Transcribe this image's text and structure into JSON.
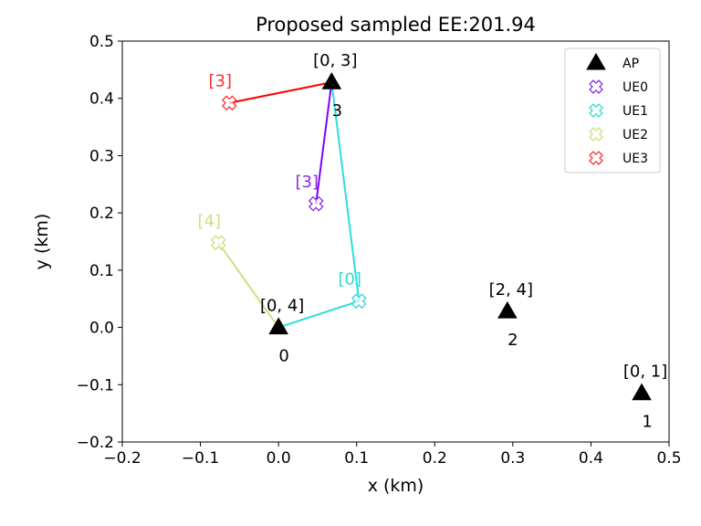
{
  "chart_data": {
    "type": "scatter",
    "title": "Proposed sampled EE:201.94",
    "xlabel": "x (km)",
    "ylabel": "y (km)",
    "xlim": [
      -0.2,
      0.5
    ],
    "ylim": [
      -0.2,
      0.5
    ],
    "xticks": [
      "−0.2",
      "−0.1",
      "0.0",
      "0.1",
      "0.2",
      "0.3",
      "0.4",
      "0.5"
    ],
    "yticks": [
      "−0.2",
      "−0.1",
      "0.0",
      "0.1",
      "0.2",
      "0.3",
      "0.4",
      "0.5"
    ],
    "grid": false,
    "legend_position": "top-right",
    "aps": [
      {
        "id": "0",
        "x": 0.0,
        "y": 0.0,
        "label": "[0, 4]"
      },
      {
        "id": "1",
        "x": 0.465,
        "y": -0.115,
        "label": "[0, 1]"
      },
      {
        "id": "2",
        "x": 0.293,
        "y": 0.028,
        "label": "[2, 4]"
      },
      {
        "id": "3",
        "x": 0.068,
        "y": 0.428,
        "label": "[0, 3]"
      }
    ],
    "ues": [
      {
        "name": "UE0",
        "x": 0.048,
        "y": 0.216,
        "label": "[3]",
        "color": "#8a2be2",
        "line_color": "#8000ff"
      },
      {
        "name": "UE1",
        "x": 0.103,
        "y": 0.046,
        "label": "[0]",
        "color": "#2fd9d9",
        "line_color": "#2adddd"
      },
      {
        "name": "UE2",
        "x": -0.077,
        "y": 0.148,
        "label": "[4]",
        "color": "#d4dd80",
        "line_color": "#d4dd80"
      },
      {
        "name": "UE3",
        "x": -0.063,
        "y": 0.392,
        "label": "[3]",
        "color": "#ff3030",
        "line_color": "#ff0000"
      }
    ],
    "links": [
      {
        "ue": "UE0",
        "aps": [
          "3"
        ]
      },
      {
        "ue": "UE1",
        "aps": [
          "0",
          "3"
        ]
      },
      {
        "ue": "UE2",
        "aps": [
          "0"
        ]
      },
      {
        "ue": "UE3",
        "aps": [
          "3"
        ]
      }
    ],
    "legend": [
      {
        "name": "AP",
        "marker": "triangle"
      },
      {
        "name": "UE0",
        "marker": "cross"
      },
      {
        "name": "UE1",
        "marker": "cross"
      },
      {
        "name": "UE2",
        "marker": "cross"
      },
      {
        "name": "UE3",
        "marker": "cross"
      }
    ]
  }
}
